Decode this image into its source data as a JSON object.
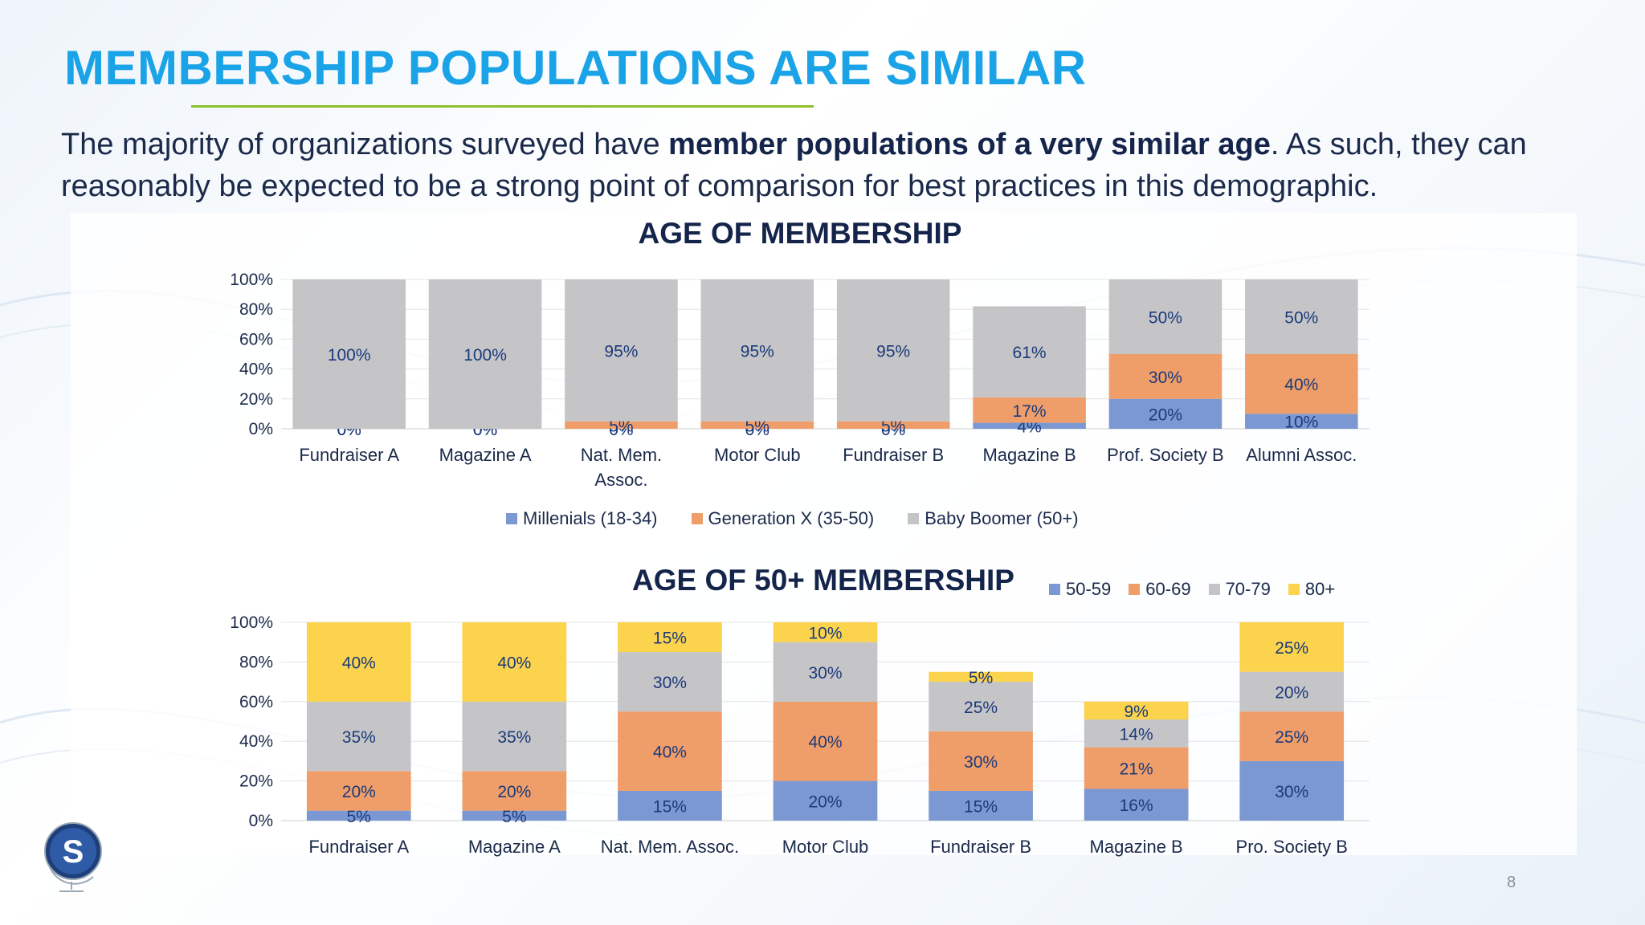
{
  "slide": {
    "title": "MEMBERSHIP POPULATIONS ARE SIMILAR",
    "intro_pre": "The majority of organizations surveyed have ",
    "intro_bold": "member populations of a very similar age",
    "intro_post": ". As such, they can reasonably be expected to be a strong point of comparison for best practices in this demographic.",
    "page_number": "8",
    "logo_letter": "S"
  },
  "colors": {
    "title": "#1aa3e6",
    "rule": "#8fbf2a",
    "millennials": "#7b98d3",
    "genx": "#ef9e6a",
    "boomer": "#c5c5c8",
    "s50_59": "#7b98d3",
    "s60_69": "#ef9e6a",
    "s70_79": "#c5c5c8",
    "s80": "#fcd34d",
    "label": "#1b3a7a"
  },
  "chart_data": [
    {
      "type": "bar",
      "stacked": true,
      "title": "AGE OF MEMBERSHIP",
      "categories": [
        [
          "Fundraiser A"
        ],
        [
          "Magazine A"
        ],
        [
          "Nat. Mem.",
          "Assoc."
        ],
        [
          "Motor Club"
        ],
        [
          "Fundraiser B"
        ],
        [
          "Magazine B"
        ],
        [
          "Prof. Society B"
        ],
        [
          "Alumni Assoc."
        ]
      ],
      "yticks": [
        "0%",
        "20%",
        "40%",
        "60%",
        "80%",
        "100%"
      ],
      "ylim": [
        0,
        100
      ],
      "legend_position": "bottom",
      "series": [
        {
          "name": "Millenials (18-34)",
          "color_key": "millennials",
          "values": [
            0,
            0,
            0,
            0,
            0,
            4,
            20,
            10
          ]
        },
        {
          "name": "Generation X (35-50)",
          "color_key": "genx",
          "values": [
            0,
            0,
            5,
            5,
            5,
            17,
            30,
            40
          ]
        },
        {
          "name": "Baby Boomer (50+)",
          "color_key": "boomer",
          "values": [
            100,
            100,
            95,
            95,
            95,
            61,
            50,
            50
          ]
        }
      ]
    },
    {
      "type": "bar",
      "stacked": true,
      "title": "AGE OF 50+ MEMBERSHIP",
      "categories": [
        [
          "Fundraiser A"
        ],
        [
          "Magazine A"
        ],
        [
          "Nat. Mem. Assoc."
        ],
        [
          "Motor Club"
        ],
        [
          "Fundraiser B"
        ],
        [
          "Magazine B"
        ],
        [
          "Pro. Society B"
        ]
      ],
      "yticks": [
        "0%",
        "20%",
        "40%",
        "60%",
        "80%",
        "100%"
      ],
      "ylim": [
        0,
        100
      ],
      "legend_position": "top-right",
      "series": [
        {
          "name": "50-59",
          "color_key": "s50_59",
          "values": [
            5,
            5,
            15,
            20,
            15,
            16,
            30
          ]
        },
        {
          "name": "60-69",
          "color_key": "s60_69",
          "values": [
            20,
            20,
            40,
            40,
            30,
            21,
            25
          ]
        },
        {
          "name": "70-79",
          "color_key": "s70_79",
          "values": [
            35,
            35,
            30,
            30,
            25,
            14,
            20
          ]
        },
        {
          "name": "80+",
          "color_key": "s80",
          "values": [
            40,
            40,
            15,
            10,
            5,
            9,
            25
          ]
        }
      ]
    }
  ]
}
